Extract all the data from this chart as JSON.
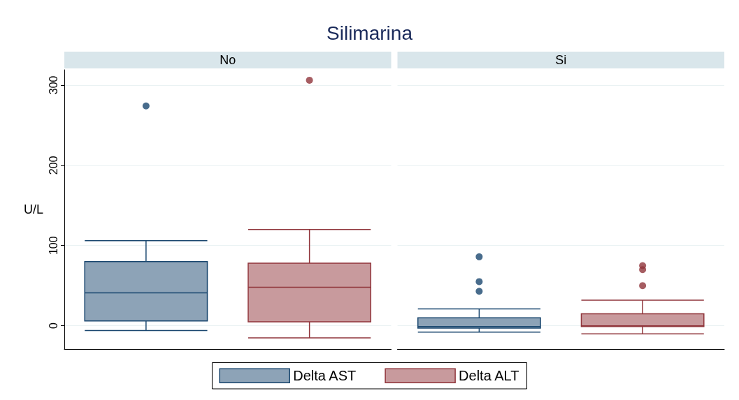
{
  "chart_data": {
    "type": "box",
    "title": "Silimarina",
    "ylabel": "U/L",
    "categories": [
      "No",
      "Si"
    ],
    "ylim": [
      -29,
      319
    ],
    "yticks": [
      0,
      100,
      200,
      300
    ],
    "grid": "y",
    "legend": "bottom",
    "tick_labels": "y",
    "series": [
      {
        "name": "Delta AST",
        "color": "#1a476f",
        "boxes": [
          {
            "low": -6,
            "q1": 6,
            "median": 41,
            "q3": 80,
            "high": 106,
            "outliers": [
              274
            ]
          },
          {
            "low": -8,
            "q1": -3,
            "median": -1,
            "q3": 10,
            "high": 21,
            "outliers": [
              86,
              55,
              43
            ]
          }
        ]
      },
      {
        "name": "Delta ALT",
        "color": "#90353b",
        "boxes": [
          {
            "low": -15,
            "q1": 5,
            "median": 48,
            "q3": 78,
            "high": 120,
            "outliers": [
              306
            ]
          },
          {
            "low": -10,
            "q1": -1,
            "median": 0,
            "q3": 15,
            "high": 32,
            "outliers": [
              75,
              70,
              50
            ]
          }
        ]
      }
    ]
  }
}
